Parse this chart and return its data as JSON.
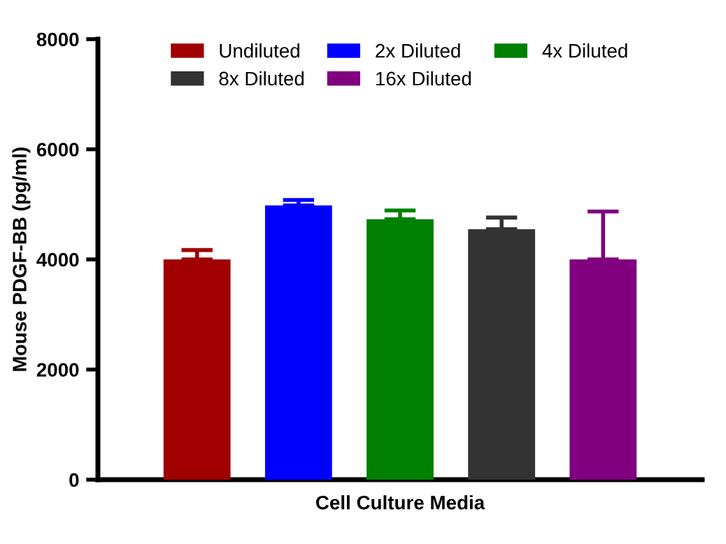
{
  "chart_data": {
    "type": "bar",
    "categories": [
      "Cell Culture Media"
    ],
    "ylabel": "Mouse PDGF-BB (pg/ml)",
    "series": [
      {
        "name": "Undiluted",
        "color": "#a00000",
        "values": [
          4000
        ],
        "errors": [
          [
            4000,
            4170
          ]
        ]
      },
      {
        "name": "2x Diluted",
        "color": "#0000ff",
        "values": [
          4980
        ],
        "errors": [
          [
            4980,
            5080
          ]
        ]
      },
      {
        "name": "4x Diluted",
        "color": "#008000",
        "values": [
          4730
        ],
        "errors": [
          [
            4730,
            4890
          ]
        ]
      },
      {
        "name": "8x Diluted",
        "color": "#333333",
        "values": [
          4550
        ],
        "errors": [
          [
            4550,
            4760
          ]
        ]
      },
      {
        "name": "16x Diluted",
        "color": "#800080",
        "values": [
          4000
        ],
        "errors": [
          [
            4000,
            4870
          ]
        ]
      }
    ],
    "ylim": [
      0,
      8000
    ],
    "yticks": [
      0,
      2000,
      4000,
      6000,
      8000
    ],
    "grid": false,
    "legend": "top"
  }
}
